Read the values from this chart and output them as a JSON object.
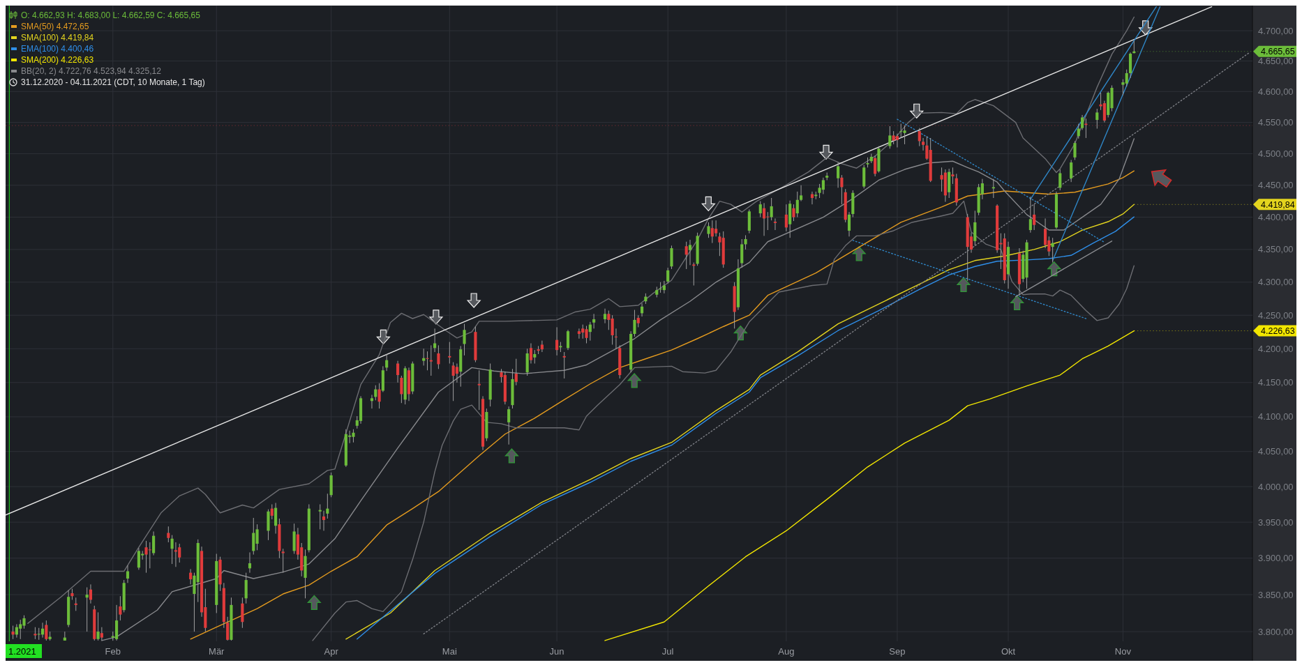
{
  "chart_data": {
    "type": "candlestick",
    "x": [
      "2021-01-05",
      "2021-01-06",
      "2021-01-07",
      "2021-01-08",
      "2021-01-11",
      "2021-01-12",
      "2021-01-13",
      "2021-01-14",
      "2021-01-15",
      "2021-01-19",
      "2021-01-20",
      "2021-01-21",
      "2021-01-22",
      "2021-01-25",
      "2021-01-26",
      "2021-01-27",
      "2021-01-28",
      "2021-01-29",
      "2021-02-01",
      "2021-02-02",
      "2021-02-03",
      "2021-02-04",
      "2021-02-05",
      "2021-02-08",
      "2021-02-09",
      "2021-02-10",
      "2021-02-11",
      "2021-02-12",
      "2021-02-16",
      "2021-02-17",
      "2021-02-18",
      "2021-02-19",
      "2021-02-22",
      "2021-02-23",
      "2021-02-24",
      "2021-02-25",
      "2021-02-26",
      "2021-03-01",
      "2021-03-02",
      "2021-03-03",
      "2021-03-04",
      "2021-03-05",
      "2021-03-08",
      "2021-03-09",
      "2021-03-10",
      "2021-03-11",
      "2021-03-12",
      "2021-03-15",
      "2021-03-16",
      "2021-03-17",
      "2021-03-18",
      "2021-03-19",
      "2021-03-22",
      "2021-03-23",
      "2021-03-24",
      "2021-03-25",
      "2021-03-26",
      "2021-03-29",
      "2021-03-30",
      "2021-03-31",
      "2021-04-01",
      "2021-04-05",
      "2021-04-06",
      "2021-04-07",
      "2021-04-08",
      "2021-04-09",
      "2021-04-12",
      "2021-04-13",
      "2021-04-14",
      "2021-04-15",
      "2021-04-16",
      "2021-04-19",
      "2021-04-20",
      "2021-04-21",
      "2021-04-22",
      "2021-04-23",
      "2021-04-26",
      "2021-04-27",
      "2021-04-28",
      "2021-04-29",
      "2021-04-30",
      "2021-05-03",
      "2021-05-04",
      "2021-05-05",
      "2021-05-06",
      "2021-05-07",
      "2021-05-10",
      "2021-05-11",
      "2021-05-12",
      "2021-05-13",
      "2021-05-14",
      "2021-05-17",
      "2021-05-18",
      "2021-05-19",
      "2021-05-20",
      "2021-05-21",
      "2021-05-24",
      "2021-05-25",
      "2021-05-26",
      "2021-05-27",
      "2021-05-28",
      "2021-06-01",
      "2021-06-02",
      "2021-06-03",
      "2021-06-04",
      "2021-06-07",
      "2021-06-08",
      "2021-06-09",
      "2021-06-10",
      "2021-06-11",
      "2021-06-14",
      "2021-06-15",
      "2021-06-16",
      "2021-06-17",
      "2021-06-18",
      "2021-06-21",
      "2021-06-22",
      "2021-06-23",
      "2021-06-24",
      "2021-06-25",
      "2021-06-28",
      "2021-06-29",
      "2021-06-30",
      "2021-07-01",
      "2021-07-02",
      "2021-07-06",
      "2021-07-07",
      "2021-07-08",
      "2021-07-09",
      "2021-07-12",
      "2021-07-13",
      "2021-07-14",
      "2021-07-15",
      "2021-07-16",
      "2021-07-19",
      "2021-07-20",
      "2021-07-21",
      "2021-07-22",
      "2021-07-23",
      "2021-07-26",
      "2021-07-27",
      "2021-07-28",
      "2021-07-29",
      "2021-07-30",
      "2021-08-02",
      "2021-08-03",
      "2021-08-04",
      "2021-08-05",
      "2021-08-06",
      "2021-08-09",
      "2021-08-10",
      "2021-08-11",
      "2021-08-12",
      "2021-08-13",
      "2021-08-16",
      "2021-08-17",
      "2021-08-18",
      "2021-08-19",
      "2021-08-20",
      "2021-08-23",
      "2021-08-24",
      "2021-08-25",
      "2021-08-26",
      "2021-08-27",
      "2021-08-30",
      "2021-08-31",
      "2021-09-01",
      "2021-09-02",
      "2021-09-03",
      "2021-09-07",
      "2021-09-08",
      "2021-09-09",
      "2021-09-10",
      "2021-09-13",
      "2021-09-14",
      "2021-09-15",
      "2021-09-16",
      "2021-09-17",
      "2021-09-20",
      "2021-09-21",
      "2021-09-22",
      "2021-09-23",
      "2021-09-24",
      "2021-09-27",
      "2021-09-28",
      "2021-09-29",
      "2021-09-30",
      "2021-10-01",
      "2021-10-04",
      "2021-10-05",
      "2021-10-06",
      "2021-10-07",
      "2021-10-08",
      "2021-10-11",
      "2021-10-12",
      "2021-10-13",
      "2021-10-14",
      "2021-10-15",
      "2021-10-18",
      "2021-10-19",
      "2021-10-20",
      "2021-10-21",
      "2021-10-22",
      "2021-10-25",
      "2021-10-26",
      "2021-10-27",
      "2021-10-28",
      "2021-10-29",
      "2021-11-01",
      "2021-11-02",
      "2021-11-03",
      "2021-11-04"
    ],
    "ohlc": [
      [
        3800,
        3808,
        3790,
        3796
      ],
      [
        3796,
        3810,
        3792,
        3806
      ],
      [
        3804,
        3816,
        3790,
        3810
      ],
      [
        3808,
        3822,
        3804,
        3818
      ],
      [
        3797,
        3806,
        3790,
        3795
      ],
      [
        3796,
        3805,
        3789,
        3797
      ],
      [
        3796,
        3812,
        3792,
        3804
      ],
      [
        3809,
        3815,
        3788,
        3790
      ],
      [
        3790,
        3800,
        3788,
        3793
      ],
      [
        3788,
        3800,
        3788,
        3792
      ],
      [
        3809,
        3856,
        3806,
        3847
      ],
      [
        3852,
        3858,
        3843,
        3848
      ],
      [
        3838,
        3846,
        3828,
        3836
      ],
      [
        3846,
        3860,
        3800,
        3850
      ],
      [
        3857,
        3864,
        3838,
        3843
      ],
      [
        3830,
        3835,
        3788,
        3790
      ],
      [
        3790,
        3826,
        3788,
        3800
      ],
      [
        3798,
        3806,
        3788,
        3792
      ],
      [
        3792,
        3800,
        3788,
        3794
      ],
      [
        3790,
        3836,
        3788,
        3815
      ],
      [
        3834,
        3848,
        3815,
        3823
      ],
      [
        3829,
        3870,
        3826,
        3866
      ],
      [
        3872,
        3890,
        3866,
        3882
      ],
      [
        3887,
        3914,
        3884,
        3910
      ],
      [
        3904,
        3910,
        3898,
        3906
      ],
      [
        3915,
        3924,
        3880,
        3905
      ],
      [
        3912,
        3922,
        3886,
        3911
      ],
      [
        3907,
        3937,
        3904,
        3931
      ],
      [
        3935,
        3944,
        3922,
        3928
      ],
      [
        3913,
        3932,
        3892,
        3927
      ],
      [
        3911,
        3922,
        3888,
        3909
      ],
      [
        3915,
        3920,
        3894,
        3901
      ],
      [
        3880,
        3885,
        3864,
        3871
      ],
      [
        3851,
        3880,
        3800,
        3876
      ],
      [
        3867,
        3926,
        3840,
        3921
      ],
      [
        3910,
        3916,
        3820,
        3826
      ],
      [
        3833,
        3858,
        3800,
        3805
      ],
      [
        3836,
        3906,
        3825,
        3896
      ],
      [
        3898,
        3902,
        3855,
        3864
      ],
      [
        3859,
        3866,
        3805,
        3813
      ],
      [
        3812,
        3820,
        3788,
        3789
      ],
      [
        3789,
        3846,
        3788,
        3836
      ],
      [
        3838,
        3846,
        3805,
        3813
      ],
      [
        3845,
        3880,
        3838,
        3870
      ],
      [
        3886,
        3908,
        3880,
        3893
      ],
      [
        3910,
        3956,
        3905,
        3935
      ],
      [
        3920,
        3947,
        3911,
        3940
      ],
      [
        3938,
        3968,
        3925,
        3965
      ],
      [
        3969,
        3975,
        3954,
        3959
      ],
      [
        3945,
        3977,
        3934,
        3970
      ],
      [
        3947,
        3955,
        3900,
        3910
      ],
      [
        3909,
        3913,
        3880,
        3907
      ],
      [
        3910,
        3948,
        3906,
        3937
      ],
      [
        3933,
        3942,
        3898,
        3905
      ],
      [
        3915,
        3921,
        3875,
        3883
      ],
      [
        3873,
        3912,
        3845,
        3903
      ],
      [
        3911,
        3975,
        3908,
        3969
      ],
      [
        3965,
        3975,
        3940,
        3967
      ],
      [
        3958,
        3966,
        3938,
        3953
      ],
      [
        3962,
        3990,
        3955,
        3969
      ],
      [
        3988,
        4020,
        3985,
        4016
      ],
      [
        4030,
        4082,
        4028,
        4075
      ],
      [
        4071,
        4080,
        4062,
        4073
      ],
      [
        4071,
        4082,
        4063,
        4077
      ],
      [
        4087,
        4101,
        4083,
        4095
      ],
      [
        4094,
        4130,
        4090,
        4127
      ],
      [
        4123,
        4132,
        4112,
        4127
      ],
      [
        4129,
        4146,
        4124,
        4140
      ],
      [
        4140,
        4149,
        4112,
        4122
      ],
      [
        4138,
        4174,
        4136,
        4168
      ],
      [
        4172,
        4192,
        4167,
        4183
      ],
      [
        4178,
        4182,
        4150,
        4161
      ],
      [
        4157,
        4160,
        4120,
        4133
      ],
      [
        4125,
        4174,
        4118,
        4171
      ],
      [
        4168,
        4172,
        4123,
        4133
      ],
      [
        4137,
        4181,
        4133,
        4178
      ],
      [
        4182,
        4200,
        4175,
        4186
      ],
      [
        4186,
        4196,
        4168,
        4185
      ],
      [
        4183,
        4205,
        4160,
        4181
      ],
      [
        4201,
        4230,
        4195,
        4208
      ],
      [
        4193,
        4205,
        4170,
        4177
      ],
      [
        4189,
        4210,
        4178,
        4187
      ],
      [
        4175,
        4180,
        4123,
        4160
      ],
      [
        4173,
        4178,
        4150,
        4163
      ],
      [
        4166,
        4204,
        4144,
        4199
      ],
      [
        4207,
        4237,
        4190,
        4228
      ],
      [
        4225,
        4233,
        4180,
        4183
      ],
      [
        4148,
        4168,
        4110,
        4146
      ],
      [
        4126,
        4130,
        4052,
        4057
      ],
      [
        4069,
        4112,
        4065,
        4107
      ],
      [
        4125,
        4178,
        4115,
        4169
      ],
      [
        4165,
        4170,
        4150,
        4158
      ],
      [
        4161,
        4166,
        4118,
        4122
      ],
      [
        4092,
        4115,
        4060,
        4111
      ],
      [
        4117,
        4170,
        4112,
        4155
      ],
      [
        4163,
        4185,
        4146,
        4151
      ],
      [
        4165,
        4200,
        4160,
        4193
      ],
      [
        4201,
        4208,
        4178,
        4183
      ],
      [
        4187,
        4198,
        4178,
        4192
      ],
      [
        4199,
        4204,
        4192,
        4197
      ],
      [
        4206,
        4212,
        4195,
        4199
      ],
      [
        4213,
        4232,
        4190,
        4198
      ],
      [
        4202,
        4210,
        4195,
        4204
      ],
      [
        4189,
        4195,
        4156,
        4187
      ],
      [
        4201,
        4228,
        4198,
        4226
      ],
      [
        4226,
        4230,
        4215,
        4222
      ],
      [
        4230,
        4236,
        4215,
        4224
      ],
      [
        4229,
        4234,
        4208,
        4216
      ],
      [
        4225,
        4240,
        4212,
        4236
      ],
      [
        4239,
        4252,
        4230,
        4244
      ],
      [
        4244,
        4260,
        4238,
        4252
      ],
      [
        4252,
        4257,
        4228,
        4243
      ],
      [
        4245,
        4250,
        4206,
        4220
      ],
      [
        4218,
        4230,
        4200,
        4217
      ],
      [
        4201,
        4205,
        4156,
        4161
      ],
      [
        4169,
        4226,
        4165,
        4222
      ],
      [
        4222,
        4258,
        4218,
        4243
      ],
      [
        4246,
        4250,
        4232,
        4238
      ],
      [
        4253,
        4268,
        4248,
        4263
      ],
      [
        4271,
        4283,
        4267,
        4278
      ],
      [
        4281,
        4293,
        4277,
        4288
      ],
      [
        4289,
        4300,
        4284,
        4290
      ],
      [
        4288,
        4302,
        4283,
        4295
      ],
      [
        4301,
        4322,
        4298,
        4318
      ],
      [
        4324,
        4356,
        4320,
        4352
      ],
      [
        4355,
        4362,
        4320,
        4342
      ],
      [
        4349,
        4365,
        4326,
        4357
      ],
      [
        4327,
        4330,
        4295,
        4325
      ],
      [
        4328,
        4376,
        4325,
        4371
      ],
      [
        4374,
        4392,
        4368,
        4386
      ],
      [
        4383,
        4395,
        4360,
        4370
      ],
      [
        4382,
        4395,
        4370,
        4375
      ],
      [
        4370,
        4376,
        4340,
        4361
      ],
      [
        4368,
        4378,
        4322,
        4327
      ],
      [
        4294,
        4300,
        4230,
        4255
      ],
      [
        4262,
        4335,
        4258,
        4321
      ],
      [
        4329,
        4366,
        4322,
        4358
      ],
      [
        4358,
        4372,
        4350,
        4366
      ],
      [
        4379,
        4412,
        4375,
        4409
      ],
      [
        4406,
        4425,
        4400,
        4420
      ],
      [
        4414,
        4422,
        4371,
        4398
      ],
      [
        4401,
        4408,
        4380,
        4400
      ],
      [
        4400,
        4430,
        4395,
        4417
      ],
      [
        4393,
        4398,
        4380,
        4391
      ],
      [
        4404,
        4420,
        4378,
        4384
      ],
      [
        4389,
        4426,
        4368,
        4421
      ],
      [
        4414,
        4420,
        4394,
        4400
      ],
      [
        4406,
        4440,
        4400,
        4427
      ],
      [
        4427,
        4450,
        4425,
        4434
      ],
      [
        4436,
        4440,
        4420,
        4430
      ],
      [
        4433,
        4440,
        4428,
        4435
      ],
      [
        4438,
        4452,
        4430,
        4446
      ],
      [
        4443,
        4462,
        4436,
        4458
      ],
      [
        4462,
        4470,
        4458,
        4465
      ],
      [
        4461,
        4486,
        4446,
        4480
      ],
      [
        4462,
        4466,
        4420,
        4447
      ],
      [
        4439,
        4444,
        4392,
        4396
      ],
      [
        4379,
        4408,
        4370,
        4404
      ],
      [
        4405,
        4442,
        4400,
        4438
      ],
      [
        4448,
        4482,
        4445,
        4478
      ],
      [
        4483,
        4494,
        4478,
        4485
      ],
      [
        4488,
        4500,
        4485,
        4495
      ],
      [
        4493,
        4497,
        4464,
        4468
      ],
      [
        4472,
        4512,
        4470,
        4508
      ],
      [
        4512,
        4544,
        4508,
        4529
      ],
      [
        4529,
        4536,
        4515,
        4521
      ],
      [
        4528,
        4532,
        4510,
        4522
      ],
      [
        4535,
        4548,
        4525,
        4536
      ],
      [
        4533,
        4545,
        4515,
        4537
      ],
      [
        4536,
        4541,
        4512,
        4520
      ],
      [
        4519,
        4525,
        4505,
        4514
      ],
      [
        4513,
        4528,
        4490,
        4492
      ],
      [
        4506,
        4525,
        4455,
        4457
      ],
      [
        4466,
        4478,
        4440,
        4459
      ],
      [
        4470,
        4475,
        4424,
        4434
      ],
      [
        4439,
        4476,
        4430,
        4471
      ],
      [
        4467,
        4478,
        4452,
        4464
      ],
      [
        4461,
        4468,
        4418,
        4423
      ],
      [
        4400,
        4405,
        4302,
        4354
      ],
      [
        4370,
        4376,
        4345,
        4350
      ],
      [
        4363,
        4410,
        4356,
        4392
      ],
      [
        4407,
        4452,
        4403,
        4447
      ],
      [
        4436,
        4460,
        4428,
        4453
      ],
      [
        4445,
        4460,
        4430,
        4447
      ],
      [
        4418,
        4420,
        4345,
        4349
      ],
      [
        4360,
        4375,
        4320,
        4358
      ],
      [
        4367,
        4375,
        4298,
        4303
      ],
      [
        4312,
        4362,
        4290,
        4354
      ],
      [
        4344,
        4352,
        4280,
        4297
      ],
      [
        4305,
        4348,
        4300,
        4342
      ],
      [
        4307,
        4365,
        4290,
        4361
      ],
      [
        4380,
        4432,
        4376,
        4397
      ],
      [
        4404,
        4420,
        4380,
        4388
      ],
      [
        4382,
        4398,
        4352,
        4357
      ],
      [
        4364,
        4370,
        4340,
        4347
      ],
      [
        4354,
        4368,
        4330,
        4360
      ],
      [
        4384,
        4440,
        4382,
        4436
      ],
      [
        4446,
        4475,
        4442,
        4469
      ],
      [
        4461,
        4490,
        4455,
        4486
      ],
      [
        4494,
        4520,
        4490,
        4517
      ],
      [
        4528,
        4548,
        4524,
        4540
      ],
      [
        4541,
        4562,
        4538,
        4558
      ],
      [
        4548,
        4556,
        4525,
        4546
      ],
      [
        4554,
        4572,
        4540,
        4566
      ],
      [
        4579,
        4598,
        4570,
        4576
      ],
      [
        4581,
        4585,
        4550,
        4553
      ],
      [
        4562,
        4600,
        4558,
        4598
      ],
      [
        4573,
        4610,
        4568,
        4606
      ],
      [
        4611,
        4620,
        4594,
        4615
      ],
      [
        4613,
        4636,
        4608,
        4630
      ],
      [
        4630,
        4664,
        4622,
        4662
      ],
      [
        4662.93,
        4683,
        4662.59,
        4665.65
      ]
    ],
    "series": [
      {
        "type": "line",
        "name": "SMA(50)  4.472,65",
        "color": "#e49b1f",
        "x": [
          "2021-02-22",
          "2021-03-01",
          "2021-03-12",
          "2021-03-19",
          "2021-03-26",
          "2021-04-01",
          "2021-04-08",
          "2021-04-16",
          "2021-04-23",
          "2021-04-30",
          "2021-05-11",
          "2021-05-18",
          "2021-05-26",
          "2021-06-03",
          "2021-06-10",
          "2021-06-18",
          "2021-06-25",
          "2021-07-02",
          "2021-07-09",
          "2021-07-16",
          "2021-07-23",
          "2021-07-28",
          "2021-08-10",
          "2021-08-20",
          "2021-09-02",
          "2021-09-13",
          "2021-09-20",
          "2021-09-30",
          "2021-10-12",
          "2021-10-19",
          "2021-10-28",
          "2021-11-01",
          "2021-11-04"
        ],
        "values": [
          3790,
          3806,
          3831,
          3851,
          3863,
          3882,
          3902,
          3946,
          3969,
          3993,
          4044,
          4075,
          4098,
          4125,
          4148,
          4172,
          4185,
          4198,
          4215,
          4233,
          4250,
          4280,
          4314,
          4348,
          4392,
          4416,
          4433,
          4441,
          4436,
          4439,
          4452,
          4462,
          4472.65
        ]
      },
      {
        "type": "line",
        "name": "SMA(100)  4.419,84",
        "color": "#e3d41e",
        "x": [
          "2021-04-05",
          "2021-04-17",
          "2021-04-29",
          "2021-05-14",
          "2021-05-28",
          "2021-06-10",
          "2021-06-21",
          "2021-07-02",
          "2021-07-14",
          "2021-07-23",
          "2021-07-26",
          "2021-08-05",
          "2021-08-16",
          "2021-08-27",
          "2021-09-07",
          "2021-09-15",
          "2021-09-22",
          "2021-09-30",
          "2021-10-08",
          "2021-10-15",
          "2021-10-21",
          "2021-10-28",
          "2021-11-01",
          "2021-11-04"
        ],
        "values": [
          3790,
          3825,
          3883,
          3935,
          3978,
          4010,
          4040,
          4063,
          4109,
          4140,
          4161,
          4195,
          4237,
          4267,
          4297,
          4319,
          4333,
          4340,
          4350,
          4362,
          4380,
          4393,
          4405,
          4419.84
        ]
      },
      {
        "type": "line",
        "name": "EMA(100)  4.400,46",
        "color": "#2f8ee8",
        "x": [
          "2021-04-08",
          "2021-04-29",
          "2021-05-14",
          "2021-05-28",
          "2021-06-10",
          "2021-06-21",
          "2021-07-02",
          "2021-07-14",
          "2021-07-23",
          "2021-07-26",
          "2021-08-05",
          "2021-08-16",
          "2021-08-27",
          "2021-09-07",
          "2021-09-15",
          "2021-09-22",
          "2021-09-28",
          "2021-10-06",
          "2021-10-12",
          "2021-10-18",
          "2021-10-24",
          "2021-10-30",
          "2021-11-04"
        ],
        "values": [
          3790,
          3879,
          3930,
          3975,
          4006,
          4036,
          4059,
          4105,
          4136,
          4157,
          4189,
          4227,
          4257,
          4289,
          4311,
          4324,
          4332,
          4334,
          4336,
          4341,
          4360,
          4378,
          4400.46
        ]
      },
      {
        "type": "line",
        "name": "SMA(200)  4.226,63",
        "color": "#f2e600",
        "x": [
          "2021-06-14",
          "2021-06-30",
          "2021-07-12",
          "2021-07-22",
          "2021-08-02",
          "2021-08-13",
          "2021-08-24",
          "2021-09-03",
          "2021-09-15",
          "2021-09-20",
          "2021-09-26",
          "2021-10-06",
          "2021-10-15",
          "2021-10-21",
          "2021-10-28",
          "2021-11-04"
        ],
        "values": [
          3788,
          3813,
          3862,
          3902,
          3938,
          3982,
          4028,
          4062,
          4095,
          4116,
          4126,
          4145,
          4161,
          4185,
          4204,
          4226.63
        ]
      },
      {
        "type": "line",
        "name": "BB(20, 2)  4.722,76  4.523,94  4.325,12",
        "color": "#88898d",
        "x": [
          "2021-01-29",
          "2021-02-02",
          "2021-02-13",
          "2021-02-17",
          "2021-03-01",
          "2021-03-03",
          "2021-03-11",
          "2021-03-19",
          "2021-03-26",
          "2021-04-02",
          "2021-04-09",
          "2021-04-19",
          "2021-04-30",
          "2021-05-09",
          "2021-05-15",
          "2021-05-23",
          "2021-06-03",
          "2021-06-09",
          "2021-06-14",
          "2021-06-22",
          "2021-06-29",
          "2021-07-07",
          "2021-07-14",
          "2021-07-23",
          "2021-07-28",
          "2021-08-12",
          "2021-08-20",
          "2021-08-27",
          "2021-09-03",
          "2021-09-09",
          "2021-09-16",
          "2021-09-20",
          "2021-09-23",
          "2021-09-28",
          "2021-09-30",
          "2021-10-06",
          "2021-10-12",
          "2021-10-16",
          "2021-10-21",
          "2021-10-26",
          "2021-10-31",
          "2021-11-04"
        ],
        "values": [
          3788,
          3793,
          3829,
          3854,
          3872,
          3883,
          3872,
          3881,
          3892,
          3927,
          3980,
          4055,
          4136,
          4172,
          4167,
          4163,
          4168,
          4176,
          4191,
          4215,
          4243,
          4271,
          4300,
          4330,
          4362,
          4400,
          4429,
          4458,
          4475,
          4485,
          4488,
          4478,
          4471,
          4455,
          4441,
          4404,
          4380,
          4380,
          4400,
          4420,
          4460,
          4523.94
        ]
      },
      {
        "type": "line",
        "color": "#6c6d72",
        "x": [
          "2021-01-09",
          "2021-01-18",
          "2021-01-26",
          "2021-02-04",
          "2021-02-08",
          "2021-02-14",
          "2021-02-19",
          "2021-02-24",
          "2021-02-26",
          "2021-03-02",
          "2021-03-08",
          "2021-03-11",
          "2021-03-18",
          "2021-03-26",
          "2021-03-31",
          "2021-04-02",
          "2021-04-04",
          "2021-04-09",
          "2021-04-14",
          "2021-04-17",
          "2021-04-20",
          "2021-04-23",
          "2021-04-26",
          "2021-05-02",
          "2021-05-05",
          "2021-05-09",
          "2021-05-11",
          "2021-05-18",
          "2021-06-01",
          "2021-06-06",
          "2021-06-10",
          "2021-06-15",
          "2021-06-18",
          "2021-06-23",
          "2021-06-27",
          "2021-07-02",
          "2021-07-09",
          "2021-07-12",
          "2021-07-15",
          "2021-07-18",
          "2021-07-21",
          "2021-07-25",
          "2021-08-01",
          "2021-08-08",
          "2021-08-13",
          "2021-08-17",
          "2021-08-21",
          "2021-08-26",
          "2021-08-31",
          "2021-09-04",
          "2021-09-07",
          "2021-09-13",
          "2021-09-17",
          "2021-09-20",
          "2021-09-22",
          "2021-09-27",
          "2021-10-03",
          "2021-10-05",
          "2021-10-11",
          "2021-10-14",
          "2021-10-15",
          "2021-10-19",
          "2021-10-25",
          "2021-10-29",
          "2021-11-02",
          "2021-11-04"
        ],
        "values": [
          3811,
          3847,
          3882,
          3882,
          3915,
          3963,
          3987,
          3998,
          3989,
          3963,
          3974,
          3970,
          3996,
          4004,
          4023,
          4025,
          4059,
          4147,
          4191,
          4239,
          4253,
          4245,
          4251,
          4227,
          4216,
          4225,
          4241,
          4241,
          4243,
          4255,
          4259,
          4275,
          4263,
          4265,
          4283,
          4303,
          4365,
          4398,
          4425,
          4420,
          4408,
          4425,
          4447,
          4471,
          4494,
          4484,
          4477,
          4496,
          4522,
          4550,
          4565,
          4566,
          4564,
          4582,
          4587,
          4577,
          4550,
          4525,
          4492,
          4470,
          4476,
          4516,
          4607,
          4661,
          4700,
          4722.76
        ]
      },
      {
        "type": "line",
        "color": "#6c6d72",
        "x": [
          "2021-03-27",
          "2021-04-02",
          "2021-04-05",
          "2021-04-08",
          "2021-04-12",
          "2021-04-15",
          "2021-04-20",
          "2021-04-23",
          "2021-04-26",
          "2021-04-29",
          "2021-05-01",
          "2021-05-04",
          "2021-05-06",
          "2021-05-09",
          "2021-05-13",
          "2021-05-17",
          "2021-05-21",
          "2021-06-03",
          "2021-06-07",
          "2021-06-09",
          "2021-06-12",
          "2021-06-18",
          "2021-06-22",
          "2021-07-02",
          "2021-07-05",
          "2021-07-11",
          "2021-07-14",
          "2021-07-18",
          "2021-07-23",
          "2021-07-31",
          "2021-08-09",
          "2021-08-13",
          "2021-08-15",
          "2021-08-18",
          "2021-08-21",
          "2021-08-26",
          "2021-08-31",
          "2021-09-05",
          "2021-09-13",
          "2021-09-16",
          "2021-09-19",
          "2021-09-21",
          "2021-09-25",
          "2021-09-29",
          "2021-10-02",
          "2021-10-05",
          "2021-10-07",
          "2021-10-11",
          "2021-10-13",
          "2021-10-15",
          "2021-10-18",
          "2021-10-22",
          "2021-10-25",
          "2021-10-28",
          "2021-10-31",
          "2021-11-02",
          "2021-11-04"
        ],
        "values": [
          3788,
          3825,
          3840,
          3842,
          3831,
          3827,
          3854,
          3898,
          3950,
          4021,
          4059,
          4094,
          4111,
          4117,
          4092,
          4090,
          4084,
          4084,
          4081,
          4101,
          4117,
          4147,
          4172,
          4174,
          4166,
          4164,
          4168,
          4195,
          4240,
          4285,
          4295,
          4297,
          4335,
          4356,
          4371,
          4371,
          4379,
          4392,
          4402,
          4406,
          4425,
          4377,
          4358,
          4350,
          4301,
          4281,
          4282,
          4282,
          4279,
          4288,
          4280,
          4257,
          4242,
          4246,
          4267,
          4290,
          4325.12
        ]
      },
      {
        "type": "line",
        "color": "#e6e6e6",
        "x": [
          "2021-01-03",
          "2021-11-25"
        ],
        "values": [
          3960,
          4740
        ]
      },
      {
        "type": "line",
        "color": "#7d7f85",
        "line_style": "dotted",
        "x": [
          "2021-04-26",
          "2021-12-05"
        ],
        "values": [
          3797,
          4663
        ]
      },
      {
        "type": "line",
        "color": "#2f86c6",
        "line_style": "dotted",
        "x": [
          "2021-09-01",
          "2021-10-27"
        ],
        "values": [
          4555,
          4361
        ]
      },
      {
        "type": "line",
        "color": "#2f86c6",
        "line_style": "dotted",
        "x": [
          "2021-08-20",
          "2021-10-22"
        ],
        "values": [
          4364,
          4245
        ]
      },
      {
        "type": "line",
        "color": "#2f86c6",
        "x": [
          "2021-10-07",
          "2021-11-10"
        ],
        "values": [
          4428,
          4740
        ]
      },
      {
        "type": "line",
        "color": "#2f86c6",
        "x": [
          "2021-10-13",
          "2021-11-11"
        ],
        "values": [
          4333,
          4740
        ]
      },
      {
        "type": "line",
        "color": "#8a8c90",
        "x": [
          "2021-10-03",
          "2021-10-29"
        ],
        "values": [
          4278,
          4363
        ]
      }
    ],
    "xlim": [
      "2021-01-03",
      "2021-12-06"
    ],
    "xticks": [
      {
        "value": "2021-02-01",
        "label": "Feb"
      },
      {
        "value": "2021-03-01",
        "label": "Mär"
      },
      {
        "value": "2021-04-01",
        "label": "Apr"
      },
      {
        "value": "2021-05-03",
        "label": "Mai"
      },
      {
        "value": "2021-06-01",
        "label": "Jun"
      },
      {
        "value": "2021-07-01",
        "label": "Jul"
      },
      {
        "value": "2021-08-02",
        "label": "Aug"
      },
      {
        "value": "2021-09-01",
        "label": "Sep"
      },
      {
        "value": "2021-10-01",
        "label": "Okt"
      },
      {
        "value": "2021-11-01",
        "label": "Nov"
      }
    ],
    "ylim": [
      3787,
      4742
    ],
    "yticks": [
      {
        "value": 3800,
        "label": "3.800,00"
      },
      {
        "value": 3850,
        "label": "3.850,00"
      },
      {
        "value": 3900,
        "label": "3.900,00"
      },
      {
        "value": 3950,
        "label": "3.950,00"
      },
      {
        "value": 4000,
        "label": "4.000,00"
      },
      {
        "value": 4050,
        "label": "4.050,00"
      },
      {
        "value": 4100,
        "label": "4.100,00"
      },
      {
        "value": 4150,
        "label": "4.150,00"
      },
      {
        "value": 4200,
        "label": "4.200,00"
      },
      {
        "value": 4250,
        "label": "4.250,00"
      },
      {
        "value": 4300,
        "label": "4.300,00"
      },
      {
        "value": 4350,
        "label": "4.350,00"
      },
      {
        "value": 4400,
        "label": "4.400,00"
      },
      {
        "value": 4450,
        "label": "4.450,00"
      },
      {
        "value": 4500,
        "label": "4.500,00"
      },
      {
        "value": 4550,
        "label": "4.550,00"
      },
      {
        "value": 4600,
        "label": "4.600,00"
      },
      {
        "value": 4650,
        "label": "4.650,00"
      },
      {
        "value": 4700,
        "label": "4.700,00"
      }
    ],
    "log": true,
    "grid": true,
    "legend": "top left",
    "ref_lines": [
      {
        "axis": "x",
        "value": "2021-01-04",
        "label": "1.2021",
        "color": "#22e022"
      },
      {
        "axis": "y",
        "value": 4545,
        "color": "#6a2b30",
        "line_style": "dotted"
      }
    ],
    "annotations": [
      "O: 4.662,93  H: 4.683,00  L: 4.662,59  C: 4.665,65",
      "31.12.2020 - 04.11.2021   (CDT, 10 Monate, 1 Tag)",
      {
        "text": "4.665,65",
        "x": "2021-11-04",
        "y": 4665.65
      },
      {
        "text": "4.419,84",
        "x": "2021-11-04",
        "y": 4419.84
      },
      {
        "text": "4.226,63",
        "x": "2021-11-04",
        "y": 4226.63
      }
    ]
  }
}
